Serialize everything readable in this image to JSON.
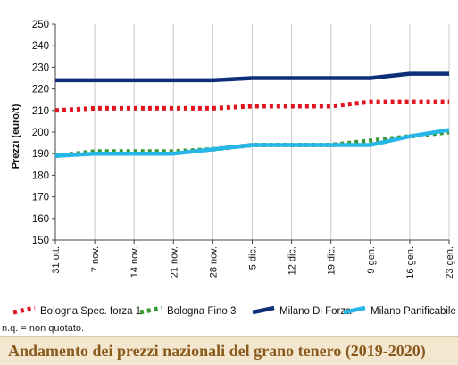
{
  "chart_data": {
    "type": "line",
    "title": "",
    "xlabel": "",
    "ylabel": "Prezzi (euro/t)",
    "ylim": [
      150,
      250
    ],
    "yticks": [
      150,
      160,
      170,
      180,
      190,
      200,
      210,
      220,
      230,
      240,
      250
    ],
    "categories": [
      "31 ott.",
      "7 nov.",
      "14 nov.",
      "21 nov.",
      "28 nov.",
      "5 dic.",
      "12 dic.",
      "19 dic.",
      "9 gen.",
      "16 gen.",
      "23 gen."
    ],
    "grid": "vertical",
    "legend_position": "bottom",
    "series": [
      {
        "name": "Bologna Spec. forza 1",
        "color": "#e0141e",
        "style": "dotted",
        "values": [
          210,
          211,
          211,
          211,
          211,
          212,
          212,
          212,
          214,
          214,
          214
        ]
      },
      {
        "name": "Bologna Fino 3",
        "color": "#3a9a32",
        "style": "dotted",
        "values": [
          189,
          191,
          191,
          191,
          192,
          194,
          194,
          194,
          196,
          198,
          200
        ]
      },
      {
        "name": "Milano Di Forza",
        "color": "#0d2f7a",
        "style": "solid",
        "values": [
          224,
          224,
          224,
          224,
          224,
          225,
          225,
          225,
          225,
          227,
          227
        ]
      },
      {
        "name": "Milano Panificabile",
        "color": "#26b6e8",
        "style": "solid",
        "values": [
          189,
          190,
          190,
          190,
          192,
          194,
          194,
          194,
          194,
          198,
          201
        ]
      }
    ]
  },
  "footnote": "n.q. = non quotato.",
  "banner": {
    "title": "Andamento dei prezzi nazionali del grano tenero (2019-2020)",
    "background": "#f3e7cf",
    "text_color": "#8a5a1d"
  }
}
